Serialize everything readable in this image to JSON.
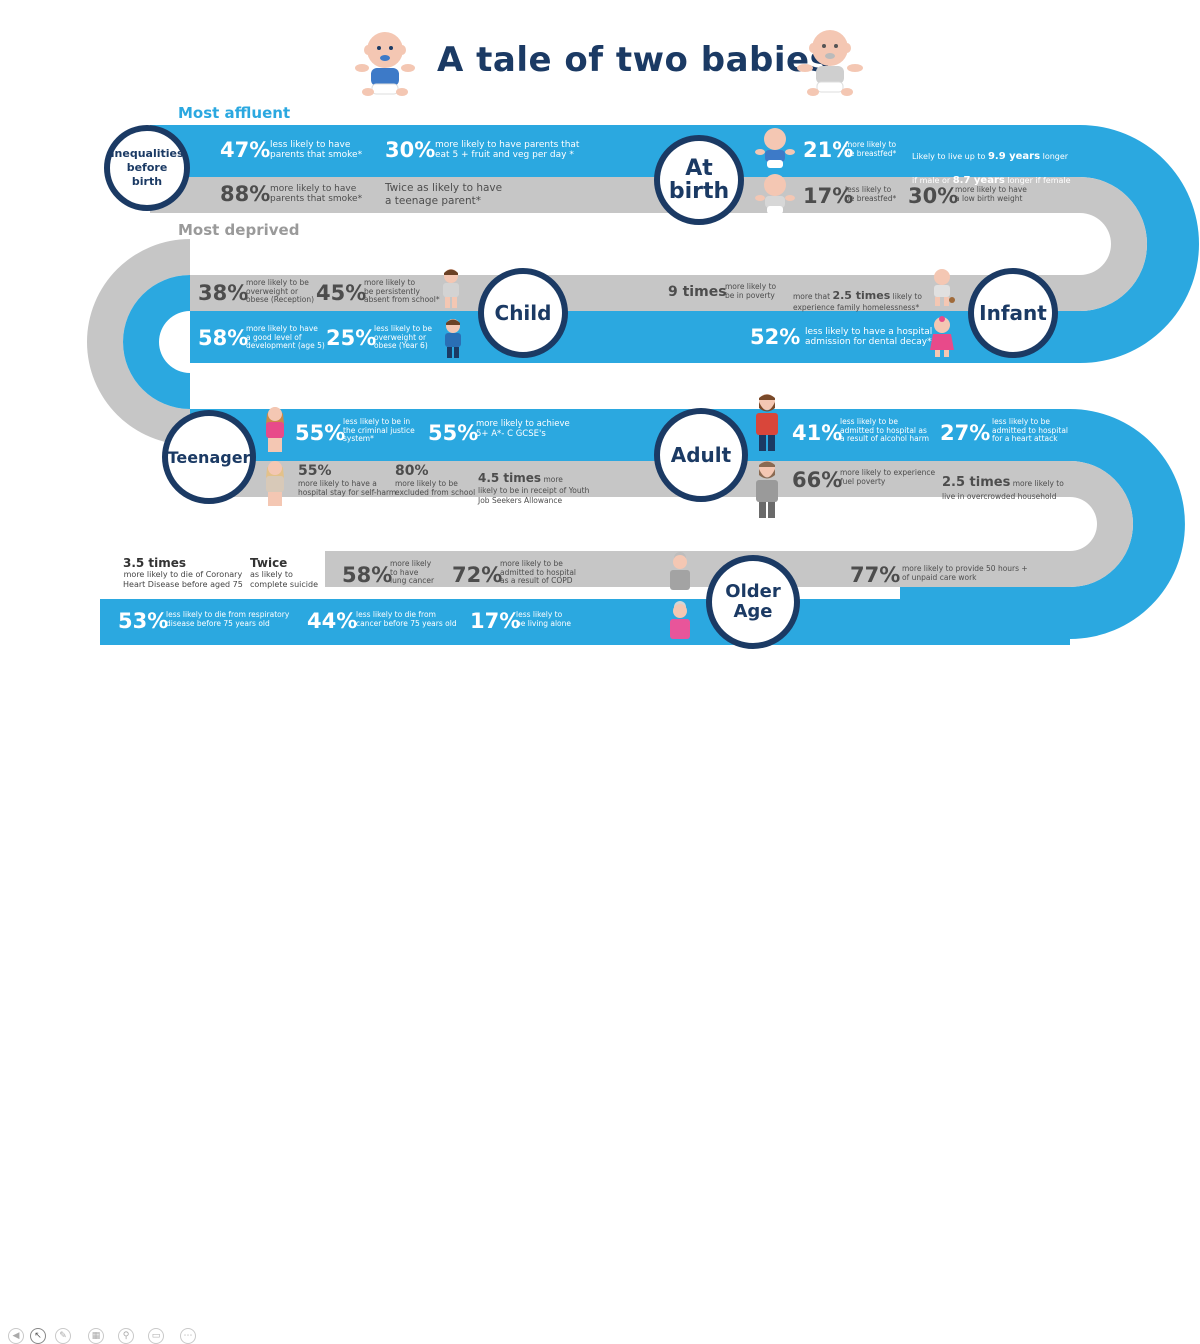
{
  "title": "A tale of two babies",
  "labels": {
    "most_affluent": "Most affluent",
    "most_deprived": "Most deprived"
  },
  "colors": {
    "blue_lane": "#2ba8e0",
    "grey_lane": "#c6c6c6",
    "navy": "#1b3a64",
    "white": "#ffffff"
  },
  "stages": {
    "inequalities": "Inequalities\nbefore\nbirth",
    "at_birth": "At\nbirth",
    "child": "Child",
    "infant": "Infant",
    "teenager": "Teenager",
    "adult": "Adult",
    "older_age": "Older\nAge"
  },
  "inequalities": {
    "blue_1_pct": "47%",
    "blue_1_text": "less likely to have\nparents that smoke*",
    "blue_2_pct": "30%",
    "blue_2_text": "more likely to have parents that\neat 5 + fruit and veg per day *",
    "grey_1_pct": "88%",
    "grey_1_text": "more likely to have\nparents that smoke*",
    "grey_2_text": "Twice as likely to have\na teenage parent*"
  },
  "at_birth": {
    "blue_1_pct": "21%",
    "blue_1_text": "more likely to\nbe breastfed*",
    "blue_2_text_a": "Likely to live up to ",
    "blue_2_bold_a": "9.9 years",
    "blue_2_text_b": " longer",
    "blue_2_text_c": "if male or ",
    "blue_2_bold_b": "8.7 years",
    "blue_2_text_d": " longer if female",
    "grey_1_pct": "17%",
    "grey_1_text": "less likely to\nbe breastfed*",
    "grey_2_pct": "30%",
    "grey_2_text": "more likely to have\na low birth weight"
  },
  "child": {
    "grey_1_pct": "38%",
    "grey_1_text": "more likely to be\noverweight or\nobese (Reception)",
    "grey_2_pct": "45%",
    "grey_2_text": "more likely to\nbe persistently\nabsent from school*",
    "blue_1_pct": "58%",
    "blue_1_text": "more likely to have\na good level of\ndevelopment (age 5)",
    "blue_2_pct": "25%",
    "blue_2_text": "less likely to be\noverweight or\nobese (Year 6)"
  },
  "infant": {
    "grey_1_bold": "9 times",
    "grey_1_text": "more likely to\nbe in poverty",
    "grey_2_pre": "more that ",
    "grey_2_bold": "2.5 times",
    "grey_2_text": " likely to\nexperience family homelessness*",
    "blue_1_pct": "52%",
    "blue_1_text": "less likely to have a hospital\nadmission for dental decay*"
  },
  "teenager": {
    "blue_1_pct": "55%",
    "blue_1_text": "less likely to be in\nthe criminal justice\nsystem*",
    "blue_2_pct": "55%",
    "blue_2_text": "more likely to achieve\n5+ A*- C GCSE's",
    "grey_1_pct": "55%",
    "grey_1_text": "more likely to have a\nhospital stay for self-harm",
    "grey_2_pct": "80%",
    "grey_2_text": "more likely to be\nexcluded from school",
    "grey_3_bold": "4.5 times",
    "grey_3_text_a": " more",
    "grey_3_text_b": "likely to be in receipt of Youth\nJob Seekers Allowance"
  },
  "adult": {
    "blue_1_pct": "41%",
    "blue_1_text": "less likely to be\nadmitted to hospital as\na result of alcohol harm",
    "blue_2_pct": "27%",
    "blue_2_text": "less likely to be\nadmitted to hospital\nfor a heart attack",
    "grey_1_pct": "66%",
    "grey_1_text": "more likely to experience\nfuel poverty",
    "grey_2_bold": "2.5 times",
    "grey_2_text_a": " more likely to",
    "grey_2_text_b": "live in overcrowded household"
  },
  "older_age": {
    "left_1_bold": "3.5 times",
    "left_1_text": "more likely to die of Coronary\nHeart Disease before aged 75",
    "left_2_bold": "Twice",
    "left_2_text": "as likely to\ncomplete suicide",
    "grey_1_pct": "58%",
    "grey_1_text": "more likely\nto have\nlung cancer",
    "grey_2_pct": "72%",
    "grey_2_text": "more likely to be\nadmitted to hospital\nas a result of COPD",
    "grey_3_pct": "77%",
    "grey_3_text": "more likely to provide 50 hours +\nof unpaid care work",
    "blue_1_pct": "53%",
    "blue_1_text": "less likely to die from respiratory\ndisease before 75 years old",
    "blue_2_pct": "44%",
    "blue_2_text": "less likely to die from\ncancer before 75 years old",
    "blue_3_pct": "17%",
    "blue_3_text": "less likely to\nbe living alone"
  },
  "toolbar_icons": [
    "back-icon",
    "pointer-icon",
    "pen-icon",
    "slides-icon",
    "zoom-icon",
    "screen-icon",
    "more-icon"
  ]
}
